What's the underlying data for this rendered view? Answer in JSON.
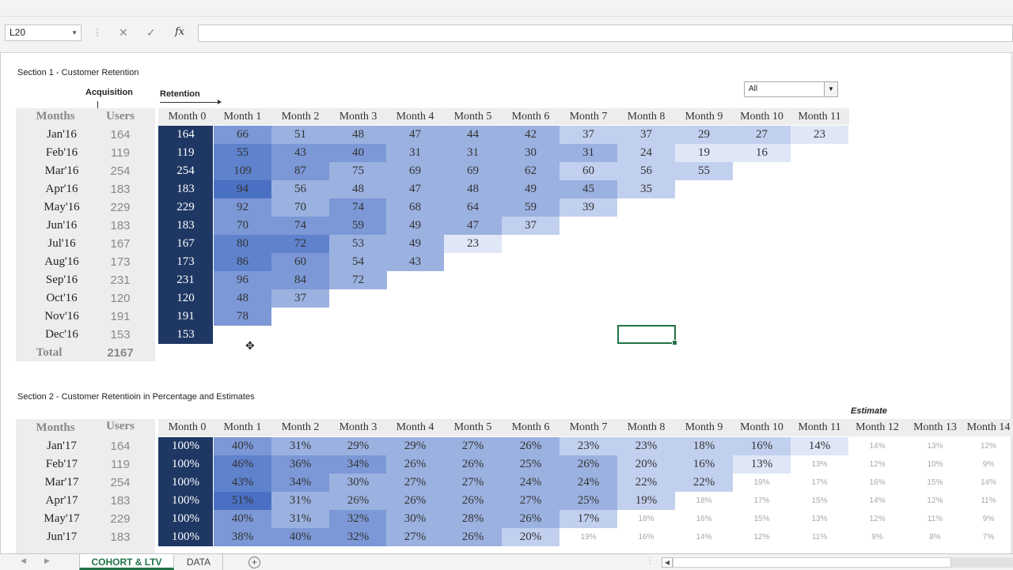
{
  "formula_bar": {
    "name_box": "L20",
    "cancel_icon": "✕",
    "enter_icon": "✓",
    "fx_label": "fx",
    "formula": ""
  },
  "section1": {
    "title": "Section 1 - Customer Retention",
    "acquisition_label": "Acquisition",
    "retention_label": "Retention",
    "filter_value": "All",
    "months_header": "Months",
    "users_header": "Users",
    "columns": [
      "Month 0",
      "Month 1",
      "Month 2",
      "Month 3",
      "Month 4",
      "Month 5",
      "Month 6",
      "Month 7",
      "Month 8",
      "Month 9",
      "Month 10",
      "Month 11"
    ],
    "rows": [
      {
        "month": "Jan'16",
        "users": "164",
        "values": [
          "164",
          "66",
          "51",
          "48",
          "47",
          "44",
          "42",
          "37",
          "37",
          "29",
          "27",
          "23"
        ]
      },
      {
        "month": "Feb'16",
        "users": "119",
        "values": [
          "119",
          "55",
          "43",
          "40",
          "31",
          "31",
          "30",
          "31",
          "24",
          "19",
          "16"
        ]
      },
      {
        "month": "Mar'16",
        "users": "254",
        "values": [
          "254",
          "109",
          "87",
          "75",
          "69",
          "69",
          "62",
          "60",
          "56",
          "55"
        ]
      },
      {
        "month": "Apr'16",
        "users": "183",
        "values": [
          "183",
          "94",
          "56",
          "48",
          "47",
          "48",
          "49",
          "45",
          "35"
        ]
      },
      {
        "month": "May'16",
        "users": "229",
        "values": [
          "229",
          "92",
          "70",
          "74",
          "68",
          "64",
          "59",
          "39"
        ]
      },
      {
        "month": "Jun'16",
        "users": "183",
        "values": [
          "183",
          "70",
          "74",
          "59",
          "49",
          "47",
          "37"
        ]
      },
      {
        "month": "Jul'16",
        "users": "167",
        "values": [
          "167",
          "80",
          "72",
          "53",
          "49",
          "23"
        ]
      },
      {
        "month": "Aug'16",
        "users": "173",
        "values": [
          "173",
          "86",
          "60",
          "54",
          "43"
        ]
      },
      {
        "month": "Sep'16",
        "users": "231",
        "values": [
          "231",
          "96",
          "84",
          "72"
        ]
      },
      {
        "month": "Oct'16",
        "users": "120",
        "values": [
          "120",
          "48",
          "37"
        ]
      },
      {
        "month": "Nov'16",
        "users": "191",
        "values": [
          "191",
          "78"
        ]
      },
      {
        "month": "Dec'16",
        "users": "153",
        "values": [
          "153"
        ]
      }
    ],
    "total_label": "Total",
    "total_value": "2167"
  },
  "section2": {
    "title": "Section 2  - Customer Retentioin in Percentage and Estimates",
    "estimate_label": "Estimate",
    "months_header": "Months",
    "users_header": "Users",
    "columns": [
      "Month 0",
      "Month 1",
      "Month 2",
      "Month 3",
      "Month 4",
      "Month 5",
      "Month 6",
      "Month 7",
      "Month 8",
      "Month 9",
      "Month 10",
      "Month 11",
      "Month 12",
      "Month 13",
      "Month 14"
    ],
    "rows": [
      {
        "month": "Jan'17",
        "users": "164",
        "actual": [
          "100%",
          "40%",
          "31%",
          "29%",
          "29%",
          "27%",
          "26%",
          "23%",
          "23%",
          "18%",
          "16%",
          "14%"
        ],
        "estimate": [
          "14%",
          "13%",
          "12%"
        ]
      },
      {
        "month": "Feb'17",
        "users": "119",
        "actual": [
          "100%",
          "46%",
          "36%",
          "34%",
          "26%",
          "26%",
          "25%",
          "26%",
          "20%",
          "16%",
          "13%"
        ],
        "estimate": [
          "13%",
          "12%",
          "10%",
          "9%"
        ]
      },
      {
        "month": "Mar'17",
        "users": "254",
        "actual": [
          "100%",
          "43%",
          "34%",
          "30%",
          "27%",
          "27%",
          "24%",
          "24%",
          "22%",
          "22%"
        ],
        "estimate": [
          "19%",
          "17%",
          "16%",
          "15%",
          "14%"
        ]
      },
      {
        "month": "Apr'17",
        "users": "183",
        "actual": [
          "100%",
          "51%",
          "31%",
          "26%",
          "26%",
          "26%",
          "27%",
          "25%",
          "19%"
        ],
        "estimate": [
          "18%",
          "17%",
          "15%",
          "14%",
          "12%",
          "11%"
        ]
      },
      {
        "month": "May'17",
        "users": "229",
        "actual": [
          "100%",
          "40%",
          "31%",
          "32%",
          "30%",
          "28%",
          "26%",
          "17%"
        ],
        "estimate": [
          "18%",
          "16%",
          "15%",
          "13%",
          "12%",
          "11%",
          "9%"
        ]
      },
      {
        "month": "Jun'17",
        "users": "183",
        "actual": [
          "100%",
          "38%",
          "40%",
          "32%",
          "27%",
          "26%",
          "20%"
        ],
        "estimate": [
          "19%",
          "16%",
          "14%",
          "12%",
          "11%",
          "9%",
          "8%",
          "7%"
        ]
      }
    ]
  },
  "sheet_tabs": {
    "active": "COHORT & LTV",
    "inactive": "DATA",
    "add_icon": "+"
  },
  "colors": {
    "month0_fill": "#1f3763",
    "heat_palette": [
      "#4a70c4",
      "#5f82cd",
      "#7c98d6",
      "#9bb1e0",
      "#c2d0ef",
      "#dfe7f7"
    ],
    "selection": "#217346"
  }
}
